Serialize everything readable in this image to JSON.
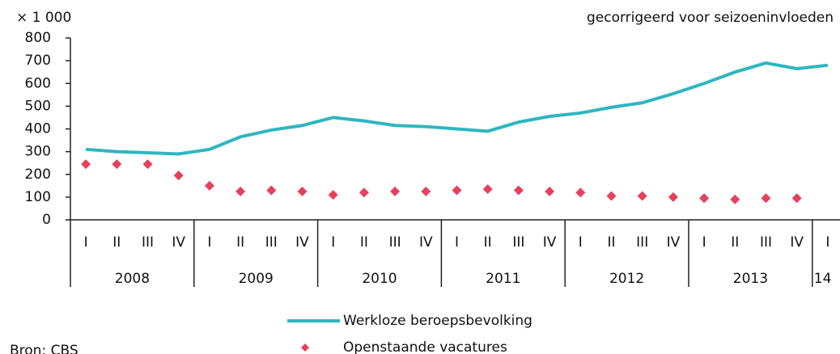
{
  "chart_data": {
    "type": "line",
    "unit_note": "× 1 000",
    "subtitle": "gecorrigeerd voor seizoeninvloeden",
    "source": "Bron: CBS",
    "categories": [
      "I",
      "II",
      "III",
      "IV",
      "I",
      "II",
      "III",
      "IV",
      "I",
      "II",
      "III",
      "IV",
      "I",
      "II",
      "III",
      "IV",
      "I",
      "II",
      "III",
      "IV",
      "I",
      "II",
      "III",
      "IV",
      "I"
    ],
    "years": [
      "2008",
      "2009",
      "2010",
      "2011",
      "2012",
      "2013",
      "14"
    ],
    "series": [
      {
        "name": "Werkloze beroepsbevolking",
        "color": "#2fb6c0",
        "style": "line",
        "values": [
          310,
          300,
          295,
          290,
          310,
          365,
          395,
          415,
          450,
          435,
          415,
          410,
          400,
          390,
          430,
          455,
          470,
          495,
          515,
          555,
          600,
          650,
          690,
          665,
          680
        ]
      },
      {
        "name": "Openstaande vacatures",
        "color": "#e8405a",
        "style": "diamond",
        "values": [
          245,
          245,
          245,
          195,
          150,
          125,
          130,
          125,
          110,
          120,
          125,
          125,
          130,
          135,
          130,
          125,
          120,
          105,
          105,
          100,
          95,
          90,
          95,
          95,
          null
        ]
      }
    ],
    "ylim": [
      0,
      800
    ],
    "yticks": [
      0,
      100,
      200,
      300,
      400,
      500,
      600,
      700,
      800
    ],
    "grid": false
  }
}
